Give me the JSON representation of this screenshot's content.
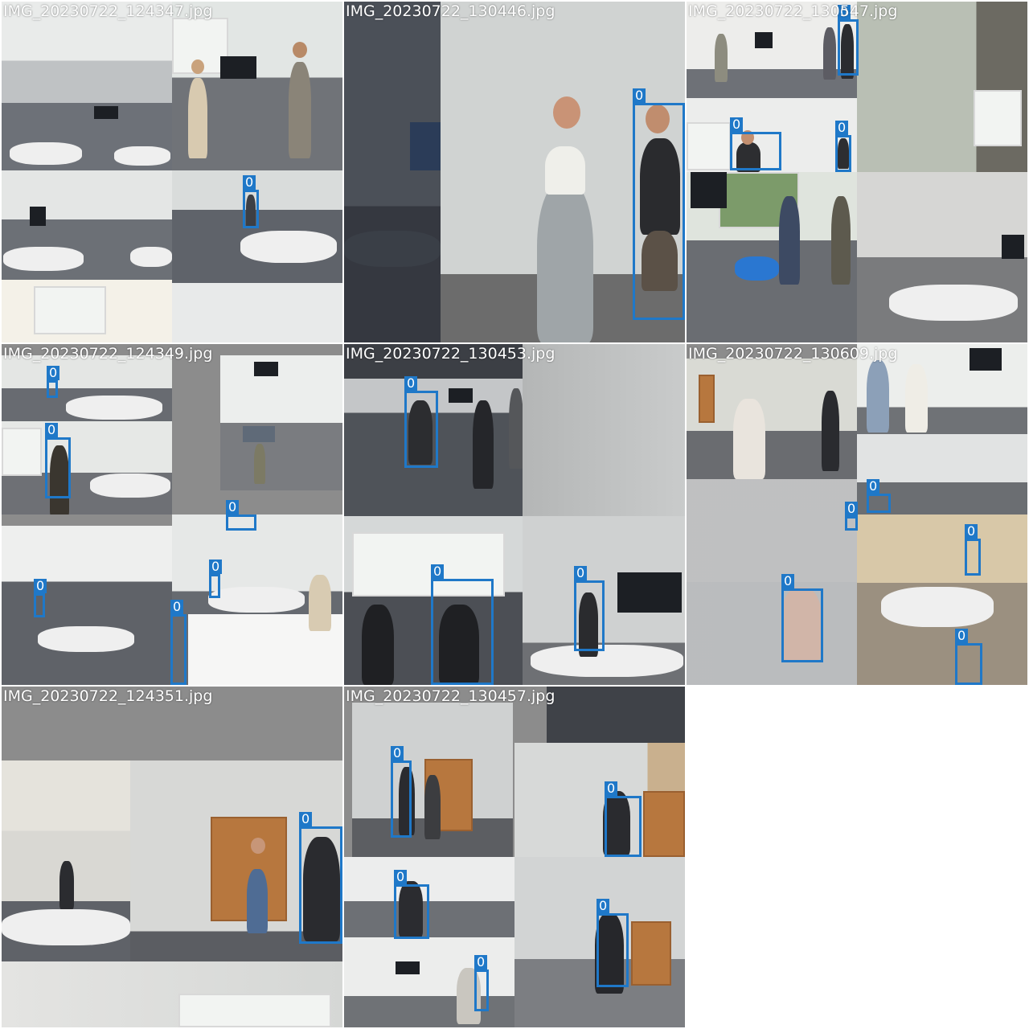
{
  "colors": {
    "bbox": "#1f78c8",
    "label_text": "#ffffff",
    "pad": "#8c8c8c"
  },
  "tiles": [
    {
      "title": "IMG_20230722_124347.jpg",
      "boxes": [
        "0"
      ]
    },
    {
      "title": "IMG_20230722_130446.jpg",
      "boxes": [
        "0"
      ]
    },
    {
      "title": "IMG_20230722_130547.jpg",
      "boxes": [
        "0",
        "0",
        "0"
      ]
    },
    {
      "title": "IMG_20230722_124349.jpg",
      "boxes": [
        "0",
        "0",
        "0",
        "0",
        "0",
        "0"
      ]
    },
    {
      "title": "IMG_20230722_130453.jpg",
      "boxes": [
        "0",
        "0",
        "0"
      ]
    },
    {
      "title": "IMG_20230722_130609.jpg",
      "boxes": [
        "0",
        "0",
        "0",
        "0",
        "0"
      ]
    },
    {
      "title": "IMG_20230722_124351.jpg",
      "boxes": [
        "0"
      ]
    },
    {
      "title": "IMG_20230722_130457.jpg",
      "boxes": [
        "0",
        "0",
        "0",
        "0",
        "0"
      ]
    }
  ]
}
